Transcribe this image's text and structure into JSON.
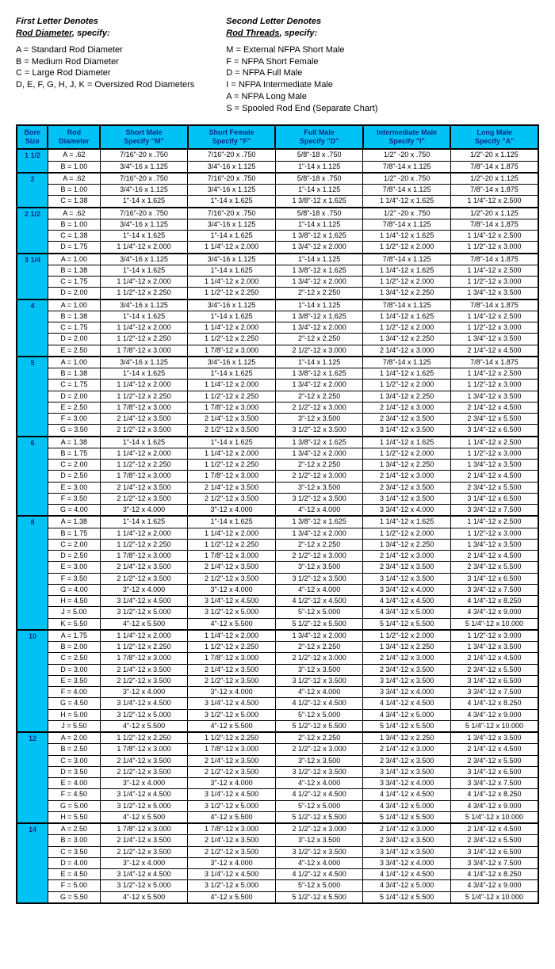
{
  "legend": {
    "left": {
      "heading1": "First Letter Denotes",
      "heading2": "Rod Diameter",
      "heading3": ", specify:",
      "lines": [
        "A = Standard Rod Diameter",
        "B = Medium Rod Diameter",
        "C = Large Rod Diameter",
        "D, E, F, G, H, J, K = Oversized Rod Diameters"
      ]
    },
    "right": {
      "heading1": "Second Letter Denotes",
      "heading2": "Rod Threads",
      "heading3": ", specify:",
      "lines": [
        "M = External NFPA Short Male",
        "F = NFPA Short Female",
        "D = NFPA Full Male",
        "I = NFPA Intermediate Male",
        "A = NFPA Long Male",
        "S = Spooled Rod End (Separate Chart)"
      ]
    }
  },
  "columns": [
    "Bore\nSize",
    "Rod\nDiameter",
    "Short Male\nSpecify  \"M\"",
    "Short Female\nSpecify  \"F\"",
    "Full Male\nSpecify  \"D\"",
    "Intermediate Male\nSpecify  \"I\"",
    "Long Male\nSpecify  \"A\""
  ],
  "groups": [
    {
      "bore": "1 1/2",
      "rows": [
        [
          "A = .62",
          "7/16\"-20 x .750",
          "7/16\"-20 x .750",
          "5/8\"-18 x .750",
          "1/2\" -20 x .750",
          "1/2\"-20 x 1.125"
        ],
        [
          "B = 1.00",
          "3/4\"-16 x 1.125",
          "3/4\"-16 x 1.125",
          "1\"-14 x 1.125",
          "7/8\"-14 x 1.125",
          "7/8\"-14 x 1.875"
        ]
      ]
    },
    {
      "bore": "2",
      "rows": [
        [
          "A = .62",
          "7/16\"-20 x .750",
          "7/16\"-20 x .750",
          "5/8\"-18 x .750",
          "1/2\" -20 x .750",
          "1/2\"-20 x 1.125"
        ],
        [
          "B = 1.00",
          "3/4\"-16 x 1.125",
          "3/4\"-16 x 1.125",
          "1\"-14 x 1.125",
          "7/8\"-14 x 1.125",
          "7/8\"-14 x 1.875"
        ],
        [
          "C = 1.38",
          "1\"-14 x 1.625",
          "1\"-14 x 1.625",
          "1 3/8\"-12 x 1.625",
          "1 1/4\"-12 x 1.625",
          "1 1/4\"-12 x 2.500"
        ]
      ]
    },
    {
      "bore": "2 1/2",
      "rows": [
        [
          "A = .62",
          "7/16\"-20 x .750",
          "7/16\"-20 x .750",
          "5/8\"-18 x .750",
          "1/2\" -20 x .750",
          "1/2\"-20 x 1.125"
        ],
        [
          "B = 1.00",
          "3/4\"-16 x 1.125",
          "3/4\"-16 x 1.125",
          "1\"-14 x 1.125",
          "7/8\"-14 x 1.125",
          "7/8\"-14 x 1.875"
        ],
        [
          "C = 1.38",
          "1\"-14 x 1.625",
          "1\"-14 x 1.625",
          "1 3/8\"-12 x 1.625",
          "1 1/4\"-12 x 1.625",
          "1 1/4\"-12 x 2.500"
        ],
        [
          "D = 1.75",
          "1 1/4\"-12 x 2.000",
          "1 1/4\"-12 x 2.000",
          "1 3/4\"-12 x 2.000",
          "1 1/2\"-12 x 2.000",
          "1 1/2\"-12 x 3.000"
        ]
      ]
    },
    {
      "bore": "3 1/4",
      "rows": [
        [
          "A = 1.00",
          "3/4\"-16 x 1.125",
          "3/4\"-16 x 1.125",
          "1\"-14 x 1.125",
          "7/8\"-14 x 1.125",
          "7/8\"-14 x 1.875"
        ],
        [
          "B = 1.38",
          "1\"-14 x 1.625",
          "1\"-14 x 1.625",
          "1 3/8\"-12 x 1.625",
          "1 1/4\"-12 x 1.625",
          "1 1/4\"-12 x 2.500"
        ],
        [
          "C = 1.75",
          "1 1/4\"-12 x 2.000",
          "1 1/4\"-12 x 2.000",
          "1 3/4\"-12 x 2.000",
          "1 1/2\"-12 x 2.000",
          "1 1/2\"-12 x 3.000"
        ],
        [
          "D = 2.00",
          "1 1/2\"-12 x 2.250",
          "1 1/2\"-12 x 2.250",
          "2\"-12 x 2.250",
          "1 3/4\"-12 x 2.250",
          "1 3/4\"-12 x 3.500"
        ]
      ]
    },
    {
      "bore": "4",
      "rows": [
        [
          "A = 1.00",
          "3/4\"-16 x 1.125",
          "3/4\"-16 x 1.125",
          "1\"-14 x 1.125",
          "7/8\"-14 x 1.125",
          "7/8\"-14 x 1.875"
        ],
        [
          "B = 1.38",
          "1\"-14 x 1.625",
          "1\"-14 x 1.625",
          "1 3/8\"-12 x 1.625",
          "1 1/4\"-12 x 1.625",
          "1 1/4\"-12 x 2.500"
        ],
        [
          "C = 1.75",
          "1 1/4\"-12 x 2.000",
          "1 1/4\"-12 x 2.000",
          "1 3/4\"-12 x 2.000",
          "1 1/2\"-12 x 2.000",
          "1 1/2\"-12 x 3.000"
        ],
        [
          "D = 2.00",
          "1 1/2\"-12 x 2.250",
          "1 1/2\"-12 x 2.250",
          "2\"-12 x 2.250",
          "1 3/4\"-12 x 2.250",
          "1 3/4\"-12 x 3.500"
        ],
        [
          "E = 2.50",
          "1 7/8\"-12 x 3.000",
          "1 7/8\"-12 x 3.000",
          "2 1/2\"-12 x 3.000",
          "2 1/4\"-12 x 3.000",
          "2 1/4\"-12 x 4.500"
        ]
      ]
    },
    {
      "bore": "5",
      "rows": [
        [
          "A = 1.00",
          "3/4\"-16 x 1.125",
          "3/4\"-16 x 1.125",
          "1\"-14 x 1.125",
          "7/8\"-14 x 1.125",
          "7/8\"-14 x 1.875"
        ],
        [
          "B = 1.38",
          "1\"-14 x 1.625",
          "1\"-14 x 1.625",
          "1 3/8\"-12 x 1.625",
          "1 1/4\"-12 x 1.625",
          "1 1/4\"-12 x 2.500"
        ],
        [
          "C = 1.75",
          "1 1/4\"-12 x 2.000",
          "1 1/4\"-12 x 2.000",
          "1 3/4\"-12 x 2.000",
          "1 1/2\"-12 x 2.000",
          "1 1/2\"-12 x 3.000"
        ],
        [
          "D = 2.00",
          "1 1/2\"-12 x 2.250",
          "1 1/2\"-12 x 2.250",
          "2\"-12 x 2.250",
          "1 3/4\"-12 x 2.250",
          "1 3/4\"-12 x 3.500"
        ],
        [
          "E = 2.50",
          "1 7/8\"-12 x 3.000",
          "1 7/8\"-12 x 3.000",
          "2 1/2\"-12 x 3.000",
          "2 1/4\"-12 x 3.000",
          "2 1/4\"-12 x 4.500"
        ],
        [
          "F = 3.00",
          "2 1/4\"-12 x 3.500",
          "2 1/4\"-12 x 3.500",
          "3\"-12 x 3.500",
          "2 3/4\"-12 x 3.500",
          "2 3/4\"-12 x 5.500"
        ],
        [
          "G = 3.50",
          "2 1/2\"-12 x 3.500",
          "2 1/2\"-12 x 3.500",
          "3 1/2\"-12 x 3.500",
          "3 1/4\"-12 x 3.500",
          "3 1/4\"-12 x 6.500"
        ]
      ]
    },
    {
      "bore": "6",
      "rows": [
        [
          "A = 1.38",
          "1\"-14 x 1.625",
          "1\"-14 x 1.625",
          "1 3/8\"-12 x 1.625",
          "1 1/4\"-12 x 1.625",
          "1 1/4\"-12 x 2.500"
        ],
        [
          "B = 1.75",
          "1 1/4\"-12 x 2.000",
          "1 1/4\"-12 x 2.000",
          "1 3/4\"-12 x 2.000",
          "1 1/2\"-12 x 2.000",
          "1 1/2\"-12 x 3.000"
        ],
        [
          "C = 2.00",
          "1 1/2\"-12 x 2.250",
          "1 1/2\"-12 x 2.250",
          "2\"-12 x 2.250",
          "1 3/4\"-12 x 2.250",
          "1 3/4\"-12 x 3.500"
        ],
        [
          "D = 2.50",
          "1 7/8\"-12 x 3.000",
          "1 7/8\"-12 x 3.000",
          "2 1/2\"-12 x 3.000",
          "2 1/4\"-12 x 3.000",
          "2 1/4\"-12 x 4.500"
        ],
        [
          "E = 3.00",
          "2 1/4\"-12 x 3.500",
          "2 1/4\"-12 x 3.500",
          "3\"-12 x 3.500",
          "2 3/4\"-12 x 3.500",
          "2 3/4\"-12 x 5.500"
        ],
        [
          "F = 3.50",
          "2 1/2\"-12 x 3.500",
          "2 1/2\"-12 x 3.500",
          "3 1/2\"-12 x 3.500",
          "3 1/4\"-12 x 3.500",
          "3 1/4\"-12 x 6.500"
        ],
        [
          "G = 4.00",
          "3\"-12 x 4.000",
          "3\"-12 x 4.000",
          "4\"-12 x 4.000",
          "3 3/4\"-12 x 4.000",
          "3 3/4\"-12 x 7.500"
        ]
      ]
    },
    {
      "bore": "8",
      "rows": [
        [
          "A = 1.38",
          "1\"-14 x 1.625",
          "1\"-14 x 1.625",
          "1 3/8\"-12 x 1.625",
          "1 1/4\"-12 x 1.625",
          "1 1/4\"-12 x 2.500"
        ],
        [
          "B = 1.75",
          "1 1/4\"-12 x 2.000",
          "1 1/4\"-12 x 2.000",
          "1 3/4\"-12 x 2.000",
          "1 1/2\"-12 x 2.000",
          "1 1/2\"-12 x 3.000"
        ],
        [
          "C = 2.00",
          "1 1/2\"-12 x 2.250",
          "1 1/2\"-12 x 2.250",
          "2\"-12 x 2.250",
          "1 3/4\"-12 x 2.250",
          "1 3/4\"-12 x 3.500"
        ],
        [
          "D = 2.50",
          "1 7/8\"-12 x 3.000",
          "1 7/8\"-12 x 3.000",
          "2 1/2\"-12 x 3.000",
          "2 1/4\"-12 x 3.000",
          "2 1/4\"-12 x 4.500"
        ],
        [
          "E = 3.00",
          "2 1/4\"-12 x 3.500",
          "2 1/4\"-12 x 3.500",
          "3\"-12 x 3.500",
          "2 3/4\"-12 x 3.500",
          "2 3/4\"-12 x 5.500"
        ],
        [
          "F = 3.50",
          "2 1/2\"-12 x 3.500",
          "2 1/2\"-12 x 3.500",
          "3 1/2\"-12 x 3.500",
          "3 1/4\"-12 x 3.500",
          "3 1/4\"-12 x 6.500"
        ],
        [
          "G = 4.00",
          "3\"-12 x 4.000",
          "3\"-12 x 4.000",
          "4\"-12 x 4.000",
          "3 3/4\"-12 x 4.000",
          "3 3/4\"-12 x 7.500"
        ],
        [
          "H = 4.50",
          "3 1/4\"-12 x 4.500",
          "3 1/4\"-12 x 4.500",
          "4 1/2\"-12 x 4.500",
          "4 1/4\"-12 x 4.500",
          "4 1/4\"-12 x 8.250"
        ],
        [
          "J = 5.00",
          "3 1/2\"-12 x 5.000",
          "3 1/2\"-12 x 5.000",
          "5\"-12 x 5.000",
          "4 3/4\"-12 x 5.000",
          "4 3/4\"-12 x 9.000"
        ],
        [
          "K = 5.50",
          "4\"-12 x 5.500",
          "4\"-12 x 5.500",
          "5 1/2\"-12 x 5.500",
          "5 1/4\"-12 x 5.500",
          "5 1/4\"-12 x 10.000"
        ]
      ]
    },
    {
      "bore": "10",
      "rows": [
        [
          "A = 1.75",
          "1 1/4\"-12 x 2.000",
          "1 1/4\"-12 x 2.000",
          "1 3/4\"-12 x 2.000",
          "1 1/2\"-12 x 2.000",
          "1 1/2\"-12 x 3.000"
        ],
        [
          "B = 2.00",
          "1 1/2\"-12 x 2.250",
          "1 1/2\"-12 x 2.250",
          "2\"-12 x 2.250",
          "1 3/4\"-12 x 2.250",
          "1 3/4\"-12 x 3.500"
        ],
        [
          "C = 2.50",
          "1 7/8\"-12 x 3.000",
          "1 7/8\"-12 x 3.000",
          "2 1/2\"-12 x 3.000",
          "2 1/4\"-12 x 3.000",
          "2 1/4\"-12 x 4.500"
        ],
        [
          "D = 3.00",
          "2 1/4\"-12 x 3.500",
          "2 1/4\"-12 x 3.500",
          "3\"-12 x 3.500",
          "2 3/4\"-12 x 3.500",
          "2 3/4\"-12 x 5.500"
        ],
        [
          "E = 3.50",
          "2 1/2\"-12 x 3.500",
          "2 1/2\"-12 x 3.500",
          "3 1/2\"-12 x 3.500",
          "3 1/4\"-12 x 3.500",
          "3 1/4\"-12 x 6.500"
        ],
        [
          "F = 4.00",
          "3\"-12 x 4.000",
          "3\"-12 x 4.000",
          "4\"-12 x 4.000",
          "3 3/4\"-12 x 4.000",
          "3 3/4\"-12 x 7.500"
        ],
        [
          "G = 4.50",
          "3 1/4\"-12 x 4.500",
          "3 1/4\"-12 x 4.500",
          "4 1/2\"-12 x 4.500",
          "4 1/4\"-12 x 4.500",
          "4 1/4\"-12 x 8.250"
        ],
        [
          "H = 5.00",
          "3 1/2\"-12 x 5.000",
          "3 1/2\"-12 x 5.000",
          "5\"-12 x 5.000",
          "4 3/4\"-12 x 5.000",
          "4 3/4\"-12 x 9.000"
        ],
        [
          "J = 5.50",
          "4\"-12 x 5.500",
          "4\"-12 x 5.500",
          "5 1/2\"-12 x 5.500",
          "5 1/4\"-12 x 5.500",
          "5 1/4\"-12 x 10.000"
        ]
      ]
    },
    {
      "bore": "12",
      "rows": [
        [
          "A = 2.00",
          "1 1/2\"-12 x 2.250",
          "1 1/2\"-12 x 2.250",
          "2\"-12 x 2.250",
          "1 3/4\"-12 x 2.250",
          "1 3/4\"-12 x 3.500"
        ],
        [
          "B = 2.50",
          "1 7/8\"-12 x 3.000",
          "1 7/8\"-12 x 3.000",
          "2 1/2\"-12 x 3.000",
          "2 1/4\"-12 x 3.000",
          "2 1/4\"-12 x 4.500"
        ],
        [
          "C = 3.00",
          "2 1/4\"-12 x 3.500",
          "2 1/4\"-12 x 3.500",
          "3\"-12 x 3.500",
          "2 3/4\"-12 x 3.500",
          "2 3/4\"-12 x 5.500"
        ],
        [
          "D = 3.50",
          "2 1/2\"-12 x 3.500",
          "2 1/2\"-12 x 3.500",
          "3 1/2\"-12 x 3.500",
          "3 1/4\"-12 x 3.500",
          "3 1/4\"-12 x 6.500"
        ],
        [
          "E = 4.00",
          "3\"-12 x 4.000",
          "3\"-12 x 4.000",
          "4\"-12 x 4.000",
          "3 3/4\"-12 x 4.000",
          "3 3/4\"-12 x 7.500"
        ],
        [
          "F = 4.50",
          "3 1/4\"-12 x 4.500",
          "3 1/4\"-12 x 4.500",
          "4 1/2\"-12 x 4.500",
          "4 1/4\"-12 x 4.500",
          "4 1/4\"-12 x 8.250"
        ],
        [
          "G = 5.00",
          "3 1/2\"-12 x 5.000",
          "3 1/2\"-12 x 5.000",
          "5\"-12 x 5.000",
          "4 3/4\"-12 x 5.000",
          "4 3/4\"-12 x 9.000"
        ],
        [
          "H = 5.50",
          "4\"-12 x 5.500",
          "4\"-12 x 5.500",
          "5 1/2\"-12 x 5.500",
          "5 1/4\"-12 x 5.500",
          "5 1/4\"-12 x 10.000"
        ]
      ]
    },
    {
      "bore": "14",
      "rows": [
        [
          "A = 2.50",
          "1 7/8\"-12 x 3.000",
          "1 7/8\"-12 x 3.000",
          "2 1/2\"-12 x 3.000",
          "2 1/4\"-12 x 3.000",
          "2 1/4\"-12 x 4.500"
        ],
        [
          "B = 3.00",
          "2 1/4\"-12 x 3.500",
          "2 1/4\"-12 x 3.500",
          "3\"-12 x 3.500",
          "2 3/4\"-12 x 3.500",
          "2 3/4\"-12 x 5.500"
        ],
        [
          "C = 3.50",
          "2 1/2\"-12 x 3.500",
          "2 1/2\"-12 x 3.500",
          "3 1/2\"-12 x 3.500",
          "3 1/4\"-12 x 3.500",
          "3 1/4\"-12 x 6.500"
        ],
        [
          "D = 4.00",
          "3\"-12 x 4.000",
          "3\"-12 x 4.000",
          "4\"-12 x 4.000",
          "3 3/4\"-12 x 4.000",
          "3 3/4\"-12 x 7.500"
        ],
        [
          "E = 4.50",
          "3 1/4\"-12 x 4.500",
          "3 1/4\"-12 x 4.500",
          "4 1/2\"-12 x 4.500",
          "4 1/4\"-12 x 4.500",
          "4 1/4\"-12 x 8.250"
        ],
        [
          "F = 5.00",
          "3 1/2\"-12 x 5.000",
          "3 1/2\"-12 x 5.000",
          "5\"-12 x 5.000",
          "4 3/4\"-12 x 5.000",
          "4 3/4\"-12 x 9.000"
        ],
        [
          "G = 5.50",
          "4\"-12 x 5.500",
          "4\"-12 x 5.500",
          "5 1/2\"-12 x 5.500",
          "5 1/4\"-12 x 5.500",
          "5 1/4\"-12 x 10.000"
        ]
      ]
    }
  ]
}
